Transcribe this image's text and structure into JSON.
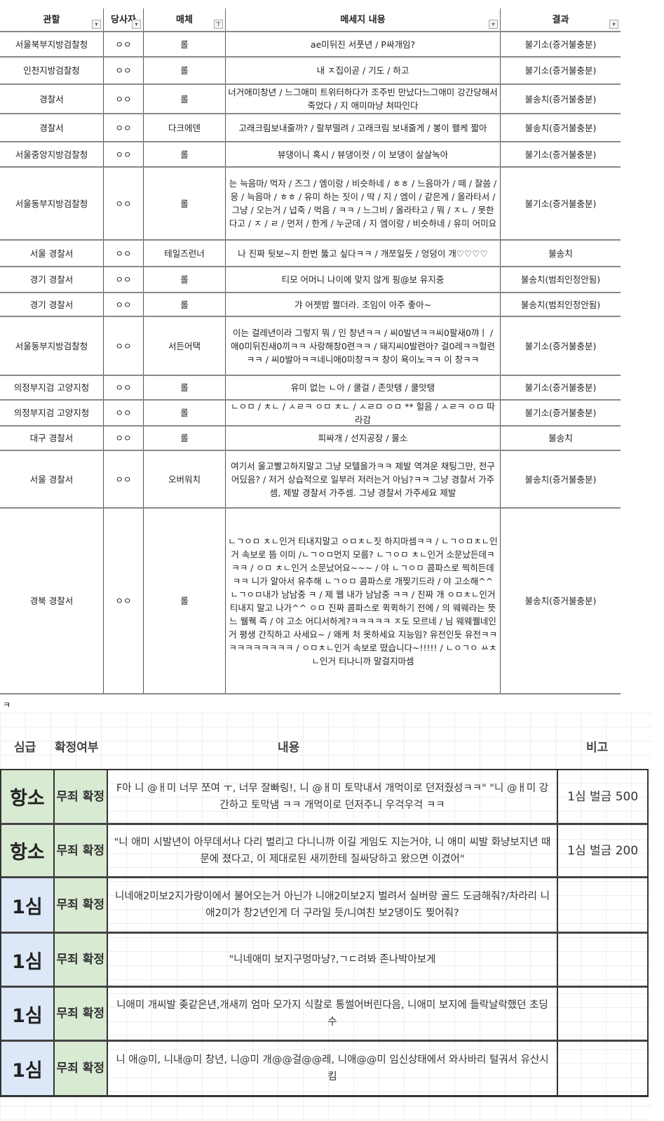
{
  "table1": {
    "headers": [
      "관할",
      "당사자",
      "매체",
      "메세지 내용",
      "결과"
    ],
    "rows": [
      {
        "jur": "서울북부지방검찰청",
        "party": "ㅇㅇ",
        "media": "롤",
        "msg": "ae미뒤진 서풋년 / P싸개임?",
        "result": "불기소(증거불충분)"
      },
      {
        "jur": "인천지방검찰청",
        "party": "ㅇㅇ",
        "media": "롤",
        "msg": "내 ㅈ집이곧 / 기도 / 하고",
        "result": "불기소(증거불충분)"
      },
      {
        "jur": "경찰서",
        "party": "ㅇㅇ",
        "media": "롤",
        "msg": "너거애미창년 / 느그애미 트위터하다가 조주빈 만났다느그애미 강간당해서 죽었다 / 지 애미마냥 쳐따인다",
        "result": "불송치(증거불충분)"
      },
      {
        "jur": "경찰서",
        "party": "ㅇㅇ",
        "media": "다크에덴",
        "msg": "고래크림보내줄까? / 랄부떨려 / 고래크림 보내줄게 / 봉이 왤케 짧아",
        "result": "불송치(증거불충분)"
      },
      {
        "jur": "서울중앙지방검찰청",
        "party": "ㅇㅇ",
        "media": "롤",
        "msg": "뷰댕이니 혹시 / 뷰댕이컷 /      이 보댕이 살살녹아",
        "result": "불기소(증거불충분)"
      },
      {
        "jur": "서울동부지방검찰청",
        "party": "ㅇㅇ",
        "media": "롤",
        "msg": "는 늑음마/ 먹자 / 즈그 / 엠이랑 / 비슷하네 / ㅎㅎ / 느음마가 / 떼 / 잘씀 / 응 / 늑음마 / ㅎㅎ / 유미 하는 짓이 / 딱 / 지 / 엠이 / 같은게 / 올라타서 / 그냥 / 오는거 / 넙죽 / 먹음 / ㅋㅋ / 느그비 / 올라타고 / 뭐 / ㅈㄴ / 못한다고 / ㅈ / ㄹ / 먼저 / 한게 / 누군데 / 지 엠이랑 / 비슷하네 / 유미 어미요",
        "result": "불기소(증거불충분)"
      },
      {
        "jur": "서울      경찰서",
        "party": "ㅇㅇ",
        "media": "테일즈런너",
        "msg": "나 진짜          뒷보~지 한번 뚫고 싶다ㅋㅋ / 개쪼일듯 / 엉덩이 개♡♡♡♡",
        "result": "불송치"
      },
      {
        "jur": "경기            경찰서",
        "party": "ㅇㅇ",
        "media": "롤",
        "msg": "티모 어머니 나이에 맞지 않게 핑@보 유지중",
        "result": "불송치(범죄인정안됨)"
      },
      {
        "jur": "경기      경찰서",
        "party": "ㅇㅇ",
        "media": "롤",
        "msg": "갸 어젯밤 쩔더라. 조임이 아주 좋아~",
        "result": "불송치(범죄인정안됨)"
      },
      {
        "jur": "서울동부지방검찰청",
        "party": "ㅇㅇ",
        "media": "서든어택",
        "msg": "이는 걸레년이라 그렇지 뭐 /       인 창년ㅋㅋ / 씨0발년ㅋㅋ씨0팔새0꺄ㅣ / 애0미뒤진새0끼ㅋㅋ 사랑해창0련ㅋㅋ / 돼지씨0발련아? 걸0레ㅋㅋ헐련ㅋㅋ / 씨0발아ㅋㅋ네니애0미창ㅋㅋ 창이 욕이노ㅋㅋ      이 창ㅋㅋ",
        "result": "불기소(증거불충분)"
      },
      {
        "jur": "의정부지검 고양지청",
        "party": "ㅇㅇ",
        "media": "롤",
        "msg": "유미 없는 ㄴ아 / 쿨걸 / 존맛탱 / 쿨맛탱",
        "result": "불기소(증거불충분)"
      },
      {
        "jur": "의정부지검 고양지청",
        "party": "ㅇㅇ",
        "media": "롤",
        "msg": "ㄴㅇㅁ / ㅊㄴ / ㅅㄹㅋ ㅇㅁ ㅊㄴ / ㅅㄹㅁ ㅇㅁ ** 헐음 / ㅅㄹㅋ ㅇㅁ 따라감",
        "result": "불기소(증거불충분)"
      },
      {
        "jur": "대구      경찰서",
        "party": "ㅇㅇ",
        "media": "롤",
        "msg": "피싸개 / 선지공장 / 물소",
        "result": "불송치"
      },
      {
        "jur": "서울      경찰서",
        "party": "ㅇㅇ",
        "media": "오버워치",
        "msg": "여기서 울고빨고하지말고 그냥 모텔을가ㅋㅋ 제발 역겨운 채팅그만, 전구 어딨음? / 저거 상습적으로 일부러 저러는거 아님?ㅋㅋ 그냥 경찰서 가주셈, 제발 경찰서 가주셈. 그냥 경찰서 가주세요 제발",
        "result": "불송치(증거불충분)"
      },
      {
        "jur": "경북      경찰서",
        "party": "ㅇㅇ",
        "media": "롤",
        "msg": "ㄴㄱㅇㅁ ㅊㄴ인거 티내지말고 ㅇㅁㅊㄴ짓 하지마셈ㅋㅋ / ㄴㄱㅇㅁㅊㄴ인거 속보로 뜸 이미 /ㄴㄱㅇㅁ먼지 모름? ㄴㄱㅇㅁ ㅊㄴ인거 소문났든데ㅋㅋㅋ /          ㅇㅁ ㅊㄴ인거 소문났어요~~~ /          야 ㄴㄱㅇㅁ 콤파스로 찍히든데ㅋㅋ 니가 알아서 유추해 ㄴㄱㅇㅁ 콤파스로 개찢기드라 / 야 고소해^^ ㄴㄱㅇㅁ내가 남남중 ㅋ / 제 웹 내가 남남중 ㅋㅋ /          진짜 개 ㅇㅁㅊㄴ인거 티내지 말고 나가^^ ㅇㅁ 진짜 콤파스로 퀵퀵하기 전에 /          의 웨웨라는 뜻 느 웰퀙 즉 /          야 고소 어디서하게?ㅋㅋㅋㅋㅋ ㅈ도 모르네 /          님 웨웨퀠네인거 평생 간직하고 사세요~ / 왜케 처 못하세요 지능임? 유전인듯 유전ㅋㅋㅋㅋㅋㅋㅋㅋㅋㅋ / ㅇㅁㅊㄴ인거 속보로 떴습니다~!!!!! / ㄴㅇㄱㅇ ㅆㅊㄴ인거 티나니까 말걸지마셈",
        "result": "불송치(증거불충분)"
      }
    ]
  },
  "separator_text": "ㅋ",
  "table2": {
    "headers": [
      "심급",
      "확정여부",
      "내용",
      "비고"
    ],
    "rows": [
      {
        "level": "항소",
        "status": "무죄 확정",
        "content": "F아 니 @ㅐ미 너무 쪼여 ㅜ, 너무 잘빠링!, 니 @ㅐ미 토막내서 개먹이로 던저줬성ㅋㅋ\" \"니 @ㅐ미 강간하고 토막냄 ㅋㅋ 개먹이로 던저주니 우걱우걱 ㅋㅋ",
        "note": "1심 벌금 500"
      },
      {
        "level": "항소",
        "status": "무죄 확정",
        "content": "\"니 애미 시발년이 아무데서나 다리 벌리고 다니니까 이길 게임도 지는거야, 니 애미 씨발 화냥보지년 때문에 졌다고, 이 제대로된 새끼한테 질싸당하고 왔으면 이겼어\"",
        "note": "1심 벌금 200"
      },
      {
        "level": "1심",
        "status": "무죄 확정",
        "content": "니네애2미보2지가랑이에서 불어오는거 아닌가 니애2미보2지 벌려서 실버랑 골드 도금해줘?/차라리 니애2미가 창2년인게 더 구라일 듯/니여친 보2댕이도 찢어줘?",
        "note": ""
      },
      {
        "level": "1심",
        "status": "무죄 확정",
        "content": "\"니네애미 보지구멍마냥?,ㄱㄷ려봐 존나박아보게",
        "note": ""
      },
      {
        "level": "1심",
        "status": "무죄 확정",
        "content": "니애미 개씨발 좆같은년,개새끼 엄마 모가지 식칼로 통썰어버린다음, 니애미 보지에 들락날락했던 초딩수",
        "note": ""
      },
      {
        "level": "1심",
        "status": "무죄 확정",
        "content": "니 애@미, 니내@미 창년, 니@미 개@@걸@@레, 니애@@미 임신상태에서 와사바리 털궈서 유산시킴",
        "note": ""
      }
    ]
  }
}
